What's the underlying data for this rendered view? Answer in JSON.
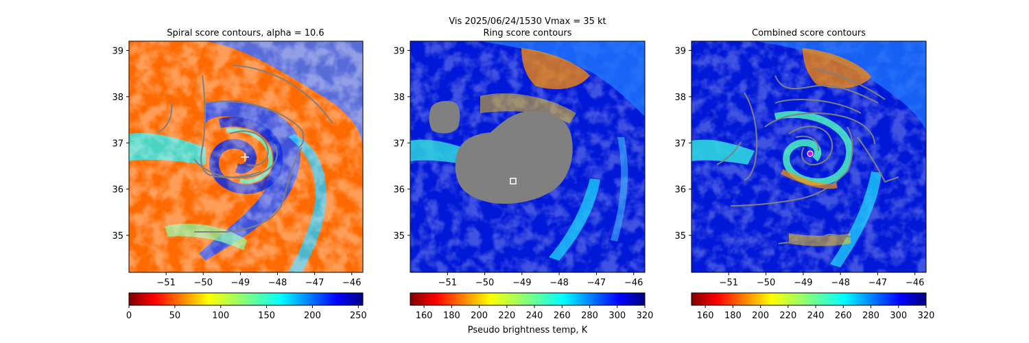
{
  "suptitle": "Vis  2025/06/24/1530    Vmax = 35 kt",
  "colorbar_label": "Pseudo brightness temp, K",
  "chart_data": [
    {
      "type": "heatmap",
      "title": "Spiral score contours, alpha = 10.6",
      "xlim": [
        -52.0,
        -45.7
      ],
      "ylim": [
        34.2,
        39.2
      ],
      "xticks": [
        -51,
        -50,
        -49,
        -48,
        -47,
        -46
      ],
      "yticks": [
        35,
        36,
        37,
        38,
        39
      ],
      "colorbar": {
        "range": [
          0,
          255
        ],
        "ticks": [
          0,
          50,
          100,
          150,
          200,
          250
        ],
        "colormap": "jet_r"
      },
      "marker": {
        "shape": "plus",
        "lon": -48.7,
        "lat": 36.65,
        "color": "#ffffff"
      },
      "contour_color": "#808080"
    },
    {
      "type": "heatmap",
      "title": "Ring score contours",
      "xlim": [
        -52.0,
        -45.7
      ],
      "ylim": [
        34.2,
        39.2
      ],
      "xticks": [
        -51,
        -50,
        -49,
        -48,
        -47,
        -46
      ],
      "yticks": [
        35,
        36,
        37,
        38,
        39
      ],
      "colorbar": {
        "range": [
          150,
          320
        ],
        "ticks": [
          160,
          180,
          200,
          220,
          240,
          260,
          280,
          300,
          320
        ],
        "colormap": "jet_r"
      },
      "marker": {
        "shape": "square",
        "lon": -49.1,
        "lat": 36.15,
        "color": "#ffffff"
      },
      "masked_color": "#808080"
    },
    {
      "type": "heatmap",
      "title": "Combined score contours",
      "xlim": [
        -52.0,
        -45.7
      ],
      "ylim": [
        34.2,
        39.2
      ],
      "xticks": [
        -51,
        -50,
        -49,
        -48,
        -47,
        -46
      ],
      "yticks": [
        35,
        36,
        37,
        38,
        39
      ],
      "colorbar": {
        "range": [
          150,
          320
        ],
        "ticks": [
          160,
          180,
          200,
          220,
          240,
          260,
          280,
          300,
          320
        ],
        "colormap": "jet_r"
      },
      "marker": {
        "shape": "circle",
        "lon": -48.75,
        "lat": 36.75,
        "color": "#d400ff"
      },
      "contour_color": "#808080"
    }
  ]
}
